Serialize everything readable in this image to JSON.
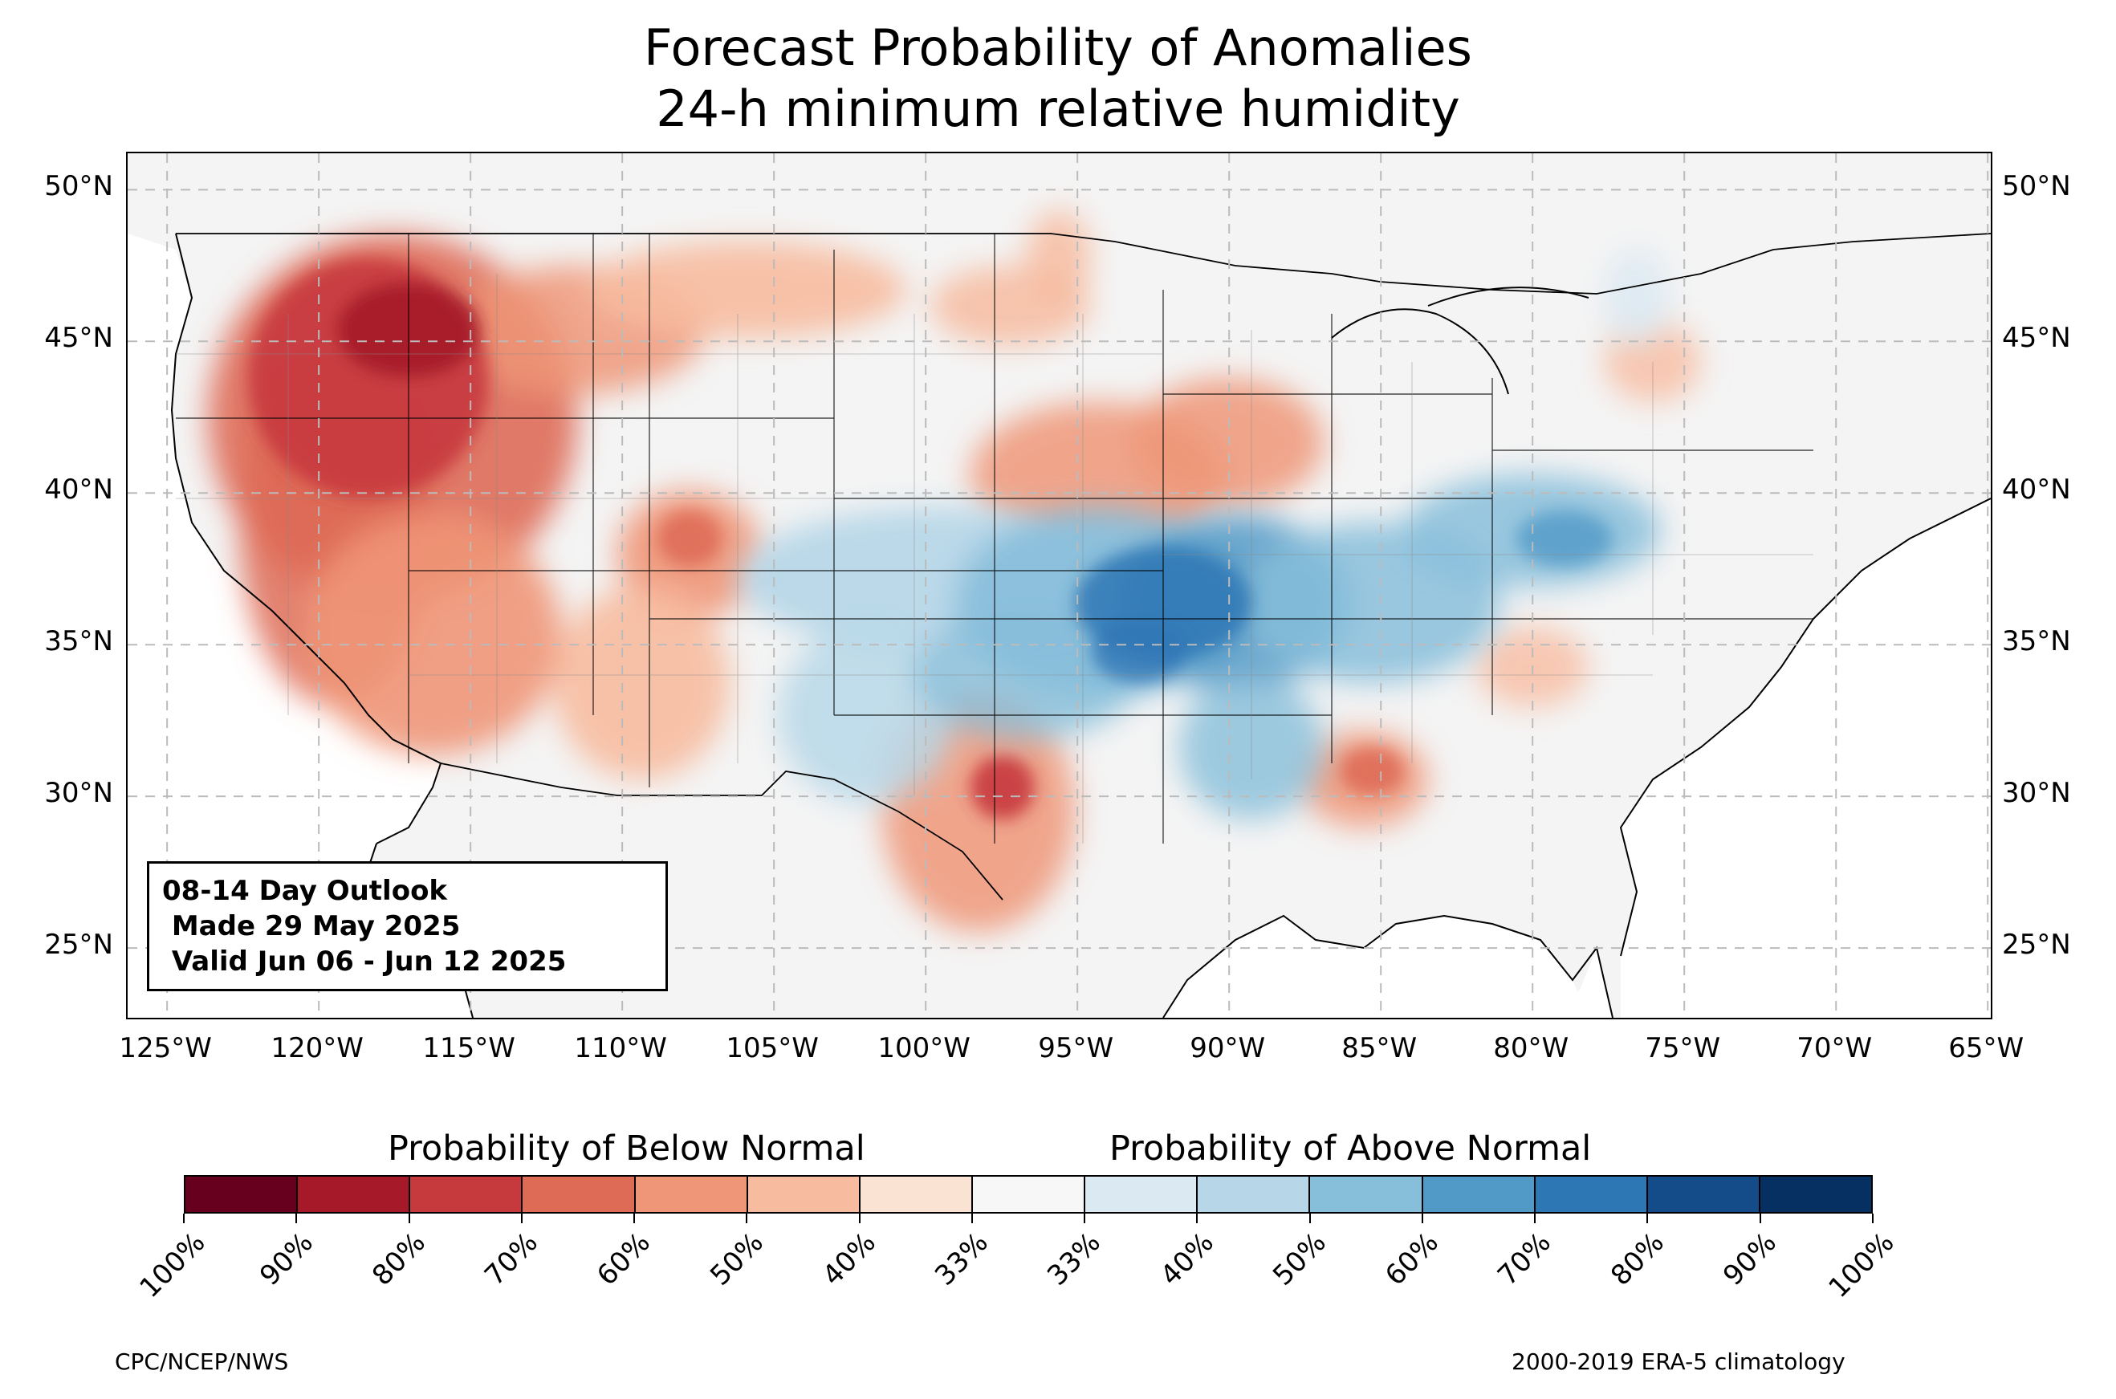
{
  "title": "Forecast Probability of Anomalies",
  "subtitle": "24-h minimum relative humidity",
  "outlook": {
    "line1": "08-14 Day Outlook",
    "line2": " Made 29 May 2025",
    "line3": " Valid Jun 06 - Jun 12 2025"
  },
  "axes": {
    "lat_labels": [
      "50°N",
      "45°N",
      "40°N",
      "35°N",
      "30°N",
      "25°N"
    ],
    "lon_labels": [
      "125°W",
      "120°W",
      "115°W",
      "110°W",
      "105°W",
      "100°W",
      "95°W",
      "90°W",
      "85°W",
      "80°W",
      "75°W",
      "70°W",
      "65°W"
    ]
  },
  "colorbar": {
    "below_title": "Probability of Below Normal",
    "above_title": "Probability of Above Normal",
    "tick_labels": [
      "100%",
      "90%",
      "80%",
      "70%",
      "60%",
      "50%",
      "40%",
      "33%",
      "33%",
      "40%",
      "50%",
      "60%",
      "70%",
      "80%",
      "90%",
      "100%"
    ],
    "colors": [
      "#67001f",
      "#a51929",
      "#c6393d",
      "#de6b56",
      "#ef9678",
      "#f7bba0",
      "#fbe3d4",
      "#f7f7f7",
      "#dae9f2",
      "#b7d7e8",
      "#87beda",
      "#5199c7",
      "#2e77b5",
      "#144c89",
      "#053061"
    ]
  },
  "footer": {
    "left": "CPC/NCEP/NWS",
    "right": "2000-2019 ERA-5 climatology"
  },
  "map": {
    "region": "Contiguous United States",
    "land_color": "#f4f4f4",
    "below_normal_color": "#de6b56",
    "above_normal_color": "#5199c7"
  }
}
